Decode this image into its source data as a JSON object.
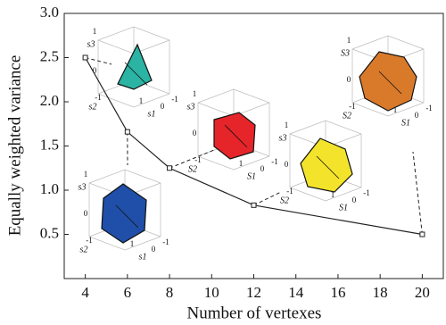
{
  "chart_data": {
    "type": "line",
    "x_label": "Number of vertexes",
    "y_label": "Equally weighted variance",
    "x": [
      4,
      6,
      8,
      12,
      20
    ],
    "series": [
      {
        "color": "#222222",
        "values": [
          2.5,
          1.66,
          1.25,
          0.83,
          0.5
        ]
      }
    ],
    "xlim": [
      3,
      21
    ],
    "xticks": [
      4,
      6,
      8,
      10,
      12,
      14,
      16,
      18,
      20
    ],
    "ylim": [
      0,
      3
    ],
    "yticks": [
      0.5,
      {
        "value": 1,
        "label": "1.0"
      },
      1.5,
      {
        "value": 2,
        "label": "2.0"
      },
      2.5,
      {
        "value": 3,
        "label": "3.0"
      }
    ],
    "insets": [
      {
        "color": "#2bb3a3",
        "axis_labels": [
          "s3",
          "s2",
          "s1"
        ],
        "tick_labels": [
          "1",
          "0",
          "-1",
          "1",
          "0",
          "-1"
        ]
      },
      {
        "color": "#1f4fa8",
        "axis_labels": [
          "s3",
          "s2",
          "s1"
        ],
        "tick_labels": [
          "1",
          "0",
          "-1",
          "1",
          "0",
          "-1"
        ]
      },
      {
        "color": "#e5252a",
        "axis_labels": [
          "s3",
          "S2",
          "S1"
        ],
        "tick_labels": [
          "1",
          "0",
          "-1",
          "1",
          "0",
          "-1"
        ]
      },
      {
        "color": "#f3e42b",
        "axis_labels": [
          "s3",
          "S2",
          "S1"
        ],
        "tick_labels": [
          "1",
          "0",
          "-1",
          "1",
          "0",
          "-1"
        ]
      },
      {
        "color": "#d97a2b",
        "axis_labels": [
          "S3",
          "S2",
          "S1"
        ],
        "tick_labels": [
          "1",
          "0",
          "-1",
          "1",
          "0",
          "-1"
        ]
      }
    ]
  }
}
